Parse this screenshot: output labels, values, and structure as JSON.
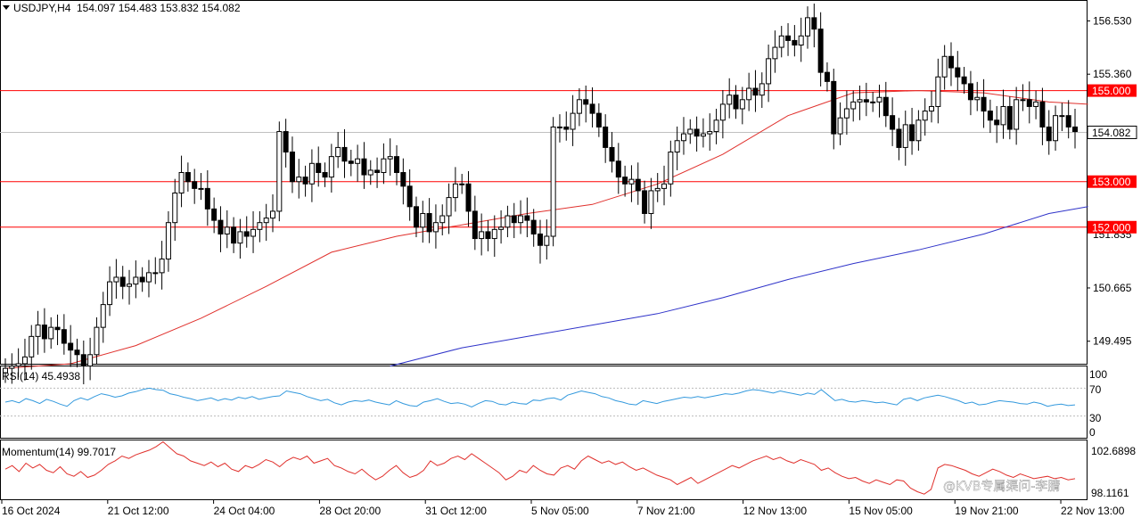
{
  "header": {
    "symbol_tf": "USDJPY,H4",
    "ohlc": "154.097 154.483 153.832 154.082"
  },
  "chart_data": {
    "type": "candlestick",
    "symbol": "USDJPY",
    "timeframe": "H4",
    "price_axis": {
      "min": 149.0,
      "max": 156.95,
      "ticks": [
        "156.530",
        "155.360",
        "150.665",
        "149.495"
      ],
      "tick_values": [
        156.53,
        155.36,
        150.665,
        149.495
      ],
      "partial_tick": "151.835",
      "partial_tick_value": 151.835
    },
    "current_price": {
      "value": 154.082,
      "label": "154.082"
    },
    "horizontal_levels": [
      {
        "value": 155.0,
        "label": "155.000",
        "color": "#ff0000"
      },
      {
        "value": 153.0,
        "label": "153.000",
        "color": "#ff0000"
      },
      {
        "value": 152.0,
        "label": "152.000",
        "color": "#ff0000"
      }
    ],
    "time_labels": [
      "16 Oct 2024",
      "21 Oct 12:00",
      "24 Oct 04:00",
      "28 Oct 20:00",
      "31 Oct 12:00",
      "5 Nov 05:00",
      "7 Nov 21:00",
      "12 Nov 13:00",
      "15 Nov 05:00",
      "19 Nov 21:00",
      "22 Nov 13:00"
    ],
    "close_series": [
      148.9,
      148.95,
      149.0,
      149.15,
      149.6,
      149.85,
      149.55,
      149.8,
      149.75,
      149.45,
      149.3,
      149.2,
      148.95,
      149.2,
      149.8,
      150.3,
      150.8,
      150.9,
      150.7,
      150.75,
      150.9,
      150.8,
      151.0,
      151.0,
      151.3,
      152.1,
      152.75,
      153.2,
      153.0,
      152.85,
      152.85,
      152.4,
      152.15,
      151.85,
      152.0,
      151.65,
      151.9,
      151.8,
      151.95,
      152.1,
      152.2,
      152.35,
      154.1,
      153.65,
      153.0,
      153.1,
      152.95,
      153.4,
      153.2,
      153.1,
      153.55,
      153.75,
      153.45,
      153.4,
      153.5,
      153.15,
      153.25,
      153.2,
      153.5,
      153.55,
      153.2,
      152.9,
      152.45,
      152.0,
      152.3,
      151.9,
      152.1,
      152.25,
      152.65,
      152.95,
      152.95,
      152.35,
      151.75,
      151.9,
      151.75,
      151.95,
      152.0,
      152.25,
      152.1,
      152.25,
      152.15,
      151.85,
      151.6,
      151.8,
      154.2,
      154.2,
      154.15,
      154.5,
      154.8,
      154.7,
      154.5,
      154.2,
      153.75,
      153.45,
      153.1,
      152.95,
      153.05,
      152.8,
      152.3,
      152.8,
      152.85,
      152.95,
      153.65,
      153.9,
      154.05,
      154.15,
      154.0,
      154.05,
      154.1,
      154.35,
      154.7,
      154.9,
      154.6,
      154.8,
      155.05,
      154.9,
      155.15,
      155.7,
      155.95,
      156.2,
      156.1,
      156.0,
      156.2,
      156.6,
      156.35,
      155.4,
      155.2,
      154.05,
      154.4,
      154.6,
      154.75,
      154.8,
      154.75,
      154.75,
      154.85,
      154.45,
      154.15,
      153.75,
      154.25,
      153.9,
      154.35,
      154.55,
      154.65,
      155.3,
      155.75,
      155.5,
      155.3,
      155.15,
      154.8,
      154.85,
      154.55,
      154.35,
      154.25,
      154.65,
      154.15,
      154.8,
      154.8,
      154.65,
      154.75,
      154.2,
      153.9,
      154.45,
      154.45,
      154.2,
      154.1
    ],
    "ma_red": {
      "color": "#e0302c",
      "values": [
        {
          "x": 0,
          "y": 148.9
        },
        {
          "x": 10,
          "y": 149.0
        },
        {
          "x": 20,
          "y": 149.4
        },
        {
          "x": 30,
          "y": 150.0
        },
        {
          "x": 40,
          "y": 150.7
        },
        {
          "x": 50,
          "y": 151.45
        },
        {
          "x": 60,
          "y": 151.8
        },
        {
          "x": 70,
          "y": 152.05
        },
        {
          "x": 80,
          "y": 152.3
        },
        {
          "x": 90,
          "y": 152.5
        },
        {
          "x": 100,
          "y": 152.95
        },
        {
          "x": 110,
          "y": 153.6
        },
        {
          "x": 120,
          "y": 154.45
        },
        {
          "x": 130,
          "y": 154.95
        },
        {
          "x": 140,
          "y": 155.0
        },
        {
          "x": 150,
          "y": 154.95
        },
        {
          "x": 160,
          "y": 154.75
        },
        {
          "x": 166,
          "y": 154.7
        }
      ]
    },
    "ma_blue": {
      "color": "#2f33c9",
      "values": [
        {
          "x": 59,
          "y": 148.95
        },
        {
          "x": 70,
          "y": 149.35
        },
        {
          "x": 80,
          "y": 149.6
        },
        {
          "x": 90,
          "y": 149.85
        },
        {
          "x": 100,
          "y": 150.1
        },
        {
          "x": 110,
          "y": 150.45
        },
        {
          "x": 120,
          "y": 150.85
        },
        {
          "x": 130,
          "y": 151.2
        },
        {
          "x": 140,
          "y": 151.5
        },
        {
          "x": 150,
          "y": 151.85
        },
        {
          "x": 160,
          "y": 152.3
        },
        {
          "x": 166,
          "y": 152.45
        }
      ]
    },
    "rsi": {
      "label": "RSI(14) 45.4938",
      "period": 14,
      "last": 45.4938,
      "ticks": [
        "100",
        "70",
        "30",
        "0"
      ],
      "levels": [
        70,
        30
      ],
      "color": "#3399dd",
      "values": [
        50,
        52,
        49,
        55,
        52,
        48,
        54,
        51,
        47,
        44,
        52,
        56,
        53,
        58,
        62,
        60,
        57,
        59,
        63,
        65,
        68,
        70,
        68,
        67,
        62,
        60,
        57,
        55,
        52,
        54,
        56,
        52,
        55,
        53,
        57,
        55,
        58,
        54,
        56,
        58,
        59,
        66,
        64,
        62,
        58,
        55,
        52,
        54,
        49,
        46,
        50,
        52,
        51,
        53,
        50,
        48,
        46,
        52,
        48,
        45,
        44,
        50,
        52,
        55,
        51,
        48,
        49,
        47,
        43,
        48,
        52,
        51,
        47,
        46,
        50,
        48,
        47,
        53,
        52,
        55,
        56,
        53,
        60,
        63,
        66,
        64,
        62,
        58,
        56,
        52,
        50,
        47,
        46,
        52,
        50,
        48,
        51,
        53,
        55,
        57,
        56,
        58,
        56,
        58,
        60,
        62,
        61,
        63,
        66,
        68,
        67,
        65,
        63,
        66,
        64,
        62,
        60,
        63,
        61,
        68,
        60,
        52,
        54,
        51,
        50,
        52,
        51,
        49,
        50,
        48,
        46,
        54,
        56,
        52,
        56,
        58,
        60,
        58,
        55,
        52,
        48,
        50,
        46,
        47,
        50,
        52,
        51,
        50,
        48,
        47,
        50,
        48,
        44,
        46,
        47,
        45,
        46
      ]
    },
    "momentum": {
      "label": "Momentum(14) 99.7017",
      "period": 14,
      "last": 99.7017,
      "ticks": [
        "102.6898",
        "98.1161"
      ],
      "color": "#e0302c",
      "values": [
        100.5,
        100.8,
        100.3,
        101.0,
        100.6,
        100.9,
        100.4,
        100.2,
        100.7,
        100.1,
        99.9,
        100.3,
        99.8,
        100.0,
        100.4,
        100.9,
        101.2,
        101.6,
        101.4,
        101.7,
        101.9,
        102.1,
        102.4,
        102.8,
        102.3,
        101.8,
        101.6,
        101.2,
        101.0,
        100.8,
        101.1,
        100.7,
        101.0,
        100.5,
        100.3,
        100.8,
        100.6,
        100.9,
        101.3,
        101.1,
        100.7,
        101.2,
        101.5,
        101.3,
        101.6,
        101.0,
        101.2,
        101.4,
        100.8,
        100.6,
        100.3,
        100.1,
        100.5,
        100.0,
        99.6,
        99.9,
        100.4,
        100.8,
        100.2,
        99.8,
        100.0,
        100.4,
        101.2,
        100.8,
        101.0,
        101.4,
        101.6,
        101.3,
        101.8,
        101.4,
        101.0,
        100.6,
        100.2,
        99.6,
        99.9,
        100.4,
        100.2,
        100.8,
        100.4,
        100.1,
        100.0,
        100.6,
        100.8,
        100.5,
        101.2,
        101.6,
        101.3,
        101.0,
        101.2,
        100.9,
        101.1,
        100.7,
        100.4,
        100.6,
        100.3,
        100.0,
        99.8,
        99.6,
        99.2,
        99.5,
        99.8,
        99.3,
        99.6,
        99.9,
        100.2,
        100.5,
        100.8,
        100.6,
        100.9,
        101.2,
        101.4,
        101.6,
        101.3,
        101.5,
        101.2,
        101.0,
        101.3,
        101.1,
        100.9,
        100.4,
        100.6,
        100.2,
        99.9,
        99.7,
        99.8,
        99.5,
        99.3,
        99.6,
        99.4,
        99.2,
        99.6,
        99.5,
        98.9,
        98.6,
        98.4,
        98.8,
        100.6,
        100.9,
        100.8,
        100.6,
        100.4,
        100.1,
        99.9,
        100.2,
        100.5,
        100.3,
        100.0,
        99.8,
        100.1,
        99.9,
        99.7,
        99.8,
        99.9,
        99.7,
        99.8,
        99.6,
        99.7
      ]
    }
  },
  "watermark": "@KVB专属渠问-李腈"
}
